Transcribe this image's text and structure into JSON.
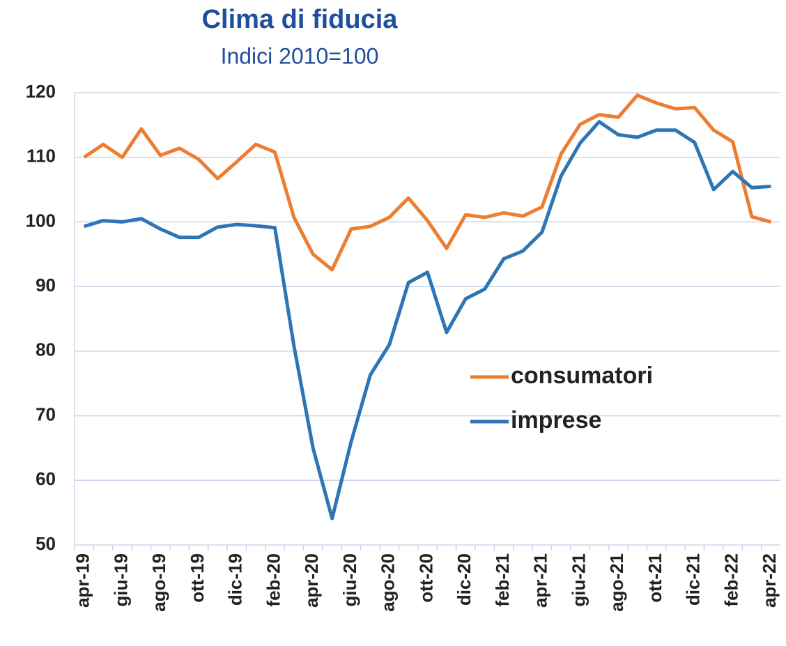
{
  "chart_data": {
    "type": "line",
    "title": "Clima di fiducia",
    "subtitle": "Indici 2010=100",
    "categories": [
      "apr-19",
      null,
      "giu-19",
      null,
      "ago-19",
      null,
      "ott-19",
      null,
      "dic-19",
      null,
      "feb-20",
      null,
      "apr-20",
      null,
      "giu-20",
      null,
      "ago-20",
      null,
      "ott-20",
      null,
      "dic-20",
      null,
      "feb-21",
      null,
      "apr-21",
      null,
      "giu-21",
      null,
      "ago-21",
      null,
      "ott-21",
      null,
      "dic-21",
      null,
      "feb-22",
      null,
      "apr-22"
    ],
    "series": [
      {
        "name": "consumatori",
        "color": "#ed7d31",
        "values": [
          110.0,
          112.0,
          110.0,
          114.4,
          110.3,
          111.4,
          109.7,
          106.7,
          109.3,
          112.0,
          110.8,
          100.7,
          95.0,
          92.6,
          98.9,
          99.3,
          100.7,
          103.7,
          100.2,
          95.9,
          101.1,
          100.7,
          101.4,
          100.9,
          102.3,
          110.5,
          115.1,
          116.6,
          116.2,
          119.6,
          118.4,
          117.5,
          117.7,
          114.2,
          112.4,
          100.8,
          100.0
        ]
      },
      {
        "name": "imprese",
        "color": "#2e75b6",
        "values": [
          99.3,
          100.2,
          100.0,
          100.5,
          98.9,
          97.6,
          97.6,
          99.2,
          99.6,
          99.4,
          99.1,
          80.8,
          65.0,
          54.1,
          66.0,
          76.3,
          81.0,
          90.6,
          92.2,
          82.9,
          88.1,
          89.6,
          94.3,
          95.5,
          98.4,
          107.1,
          112.2,
          115.5,
          113.5,
          113.1,
          114.2,
          114.2,
          112.3,
          105.0,
          107.8,
          105.3,
          105.5
        ]
      }
    ],
    "ylim": [
      50,
      120
    ],
    "yticks": [
      50,
      60,
      70,
      80,
      90,
      100,
      110,
      120
    ],
    "grid": true,
    "legend": "right"
  }
}
